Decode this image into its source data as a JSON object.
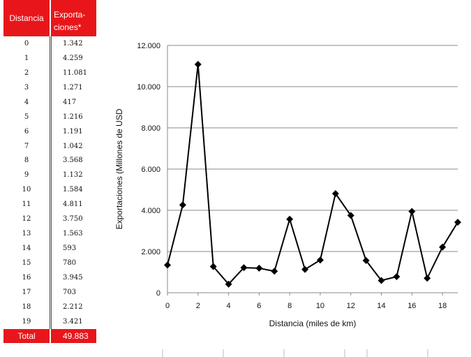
{
  "table": {
    "header": {
      "col1": "Distancia",
      "col2_line1": "Exporta-",
      "col2_line2": "ciones*"
    },
    "rows": [
      {
        "d": "0",
        "v": "1.342"
      },
      {
        "d": "1",
        "v": "4.259"
      },
      {
        "d": "2",
        "v": "11.081"
      },
      {
        "d": "3",
        "v": "1.271"
      },
      {
        "d": "4",
        "v": "417"
      },
      {
        "d": "5",
        "v": "1.216"
      },
      {
        "d": "6",
        "v": "1.191"
      },
      {
        "d": "7",
        "v": "1.042"
      },
      {
        "d": "8",
        "v": "3.568"
      },
      {
        "d": "9",
        "v": "1.132"
      },
      {
        "d": "10",
        "v": "1.584"
      },
      {
        "d": "11",
        "v": "4.811"
      },
      {
        "d": "12",
        "v": "3.750"
      },
      {
        "d": "13",
        "v": "1.563"
      },
      {
        "d": "14",
        "v": "593"
      },
      {
        "d": "15",
        "v": "780"
      },
      {
        "d": "16",
        "v": "3.945"
      },
      {
        "d": "17",
        "v": "703"
      },
      {
        "d": "18",
        "v": "2.212"
      },
      {
        "d": "19",
        "v": "3.421"
      }
    ],
    "total": {
      "label": "Total",
      "value": "49.883"
    }
  },
  "chart_data": {
    "type": "line",
    "xlabel": "Distancia (miles de km)",
    "ylabel": "Exportaciones (Millones de USD",
    "x": [
      0,
      1,
      2,
      3,
      4,
      5,
      6,
      7,
      8,
      9,
      10,
      11,
      12,
      13,
      14,
      15,
      16,
      17,
      18,
      19
    ],
    "series": [
      {
        "values": [
          1342,
          4259,
          11081,
          1271,
          417,
          1216,
          1191,
          1042,
          3568,
          1132,
          1584,
          4811,
          3750,
          1563,
          593,
          780,
          3945,
          703,
          2212,
          3421
        ]
      }
    ],
    "xlim": [
      0,
      19
    ],
    "ylim": [
      0,
      12000
    ],
    "xticks": [
      0,
      2,
      4,
      6,
      8,
      10,
      12,
      14,
      16,
      18
    ],
    "xtick_labels": [
      "0",
      "2",
      "4",
      "6",
      "8",
      "10",
      "12",
      "14",
      "16",
      "18"
    ],
    "yticks": [
      0,
      2000,
      4000,
      6000,
      8000,
      10000,
      12000
    ],
    "ytick_labels": [
      "0",
      "2.000",
      "4.000",
      "6.000",
      "8.000",
      "10.000",
      "12.000"
    ],
    "grid": "horizontal",
    "marker": "diamond",
    "line_color": "#000000",
    "grid_color": "#888888"
  }
}
